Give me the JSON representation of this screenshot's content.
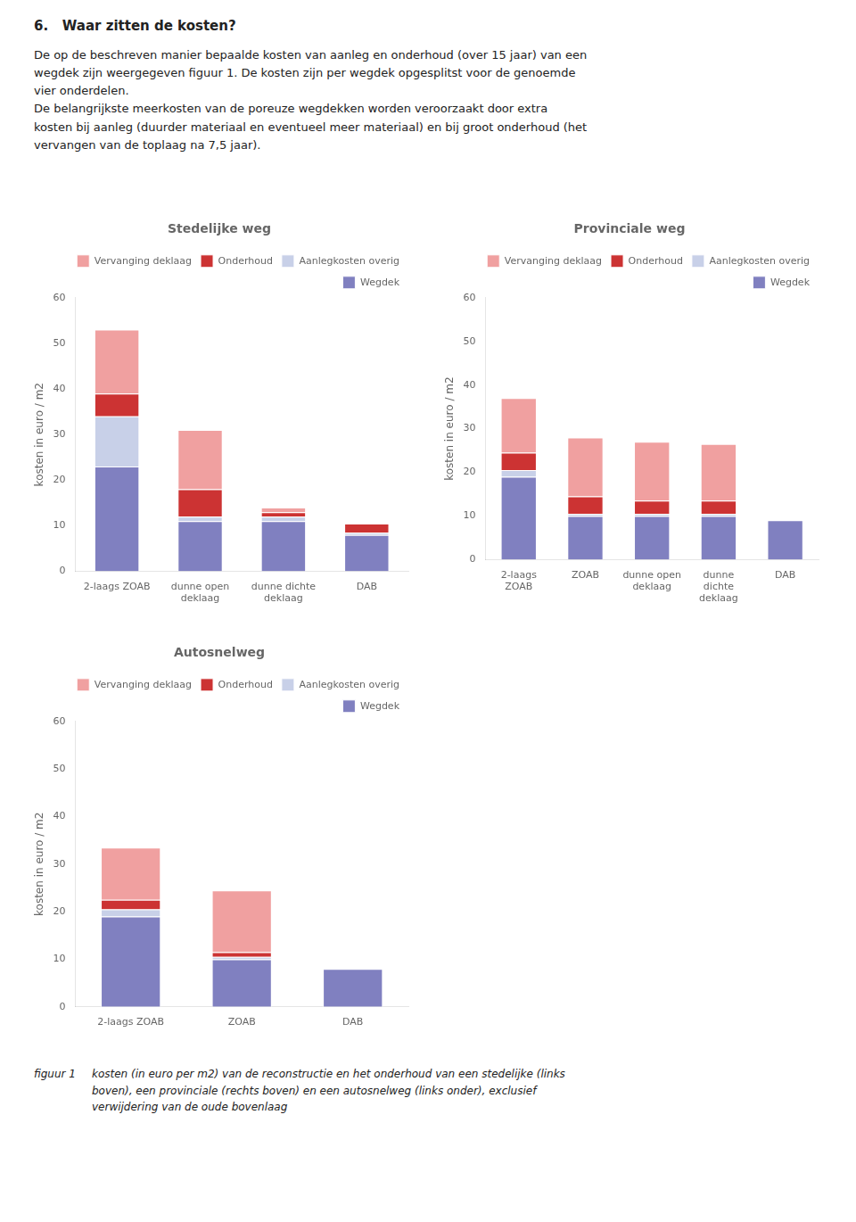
{
  "title": "6.   Waar zitten de kosten?",
  "subtitle": "De op de beschreven manier bepaalde kosten van aanleg en onderhoud (over 15 jaar) van een\nwegdek zijn weergegeven figuur 1. De kosten zijn per wegdek opgesplitst voor de genoemde\nvier onderdelen.\nDe belangrijkste meerkosten van de poreuze wegdekken worden veroorzaakt door extra\nkosten bij aanleg (duurder materiaal en eventueel meer materiaal) en bij groot onderhoud (het\nvervangen van de toplaag na 7,5 jaar).",
  "annotations": [
    "figuur 1",
    "kosten (in euro per m2) van de reconstructie en het onderhoud van een stedelijke (links\nboven), een provinciale (rechts boven) en een autosnelweg (links onder), exclusief\nverwijdering van de oude bovenlaag"
  ],
  "chart_data": [
    {
      "type": "bar",
      "title": "Stedelijke weg",
      "categories": [
        "2-laags ZOAB",
        "dunne open\ndeklaag",
        "dunne dichte\ndeklaag",
        "DAB"
      ],
      "series": [
        {
          "name": "Wegdek",
          "color": "#8080c0",
          "values": [
            23,
            11,
            11,
            8
          ]
        },
        {
          "name": "Aanlegkosten overig",
          "color": "#c8d0e8",
          "values": [
            11,
            1,
            1,
            0.5
          ]
        },
        {
          "name": "Onderhoud",
          "color": "#cc3333",
          "values": [
            5,
            6,
            1,
            2
          ]
        },
        {
          "name": "Vervanging deklaag",
          "color": "#f0a0a0",
          "values": [
            14,
            13,
            1,
            0
          ]
        }
      ],
      "ylabel": "kosten in euro / m2",
      "ylim": [
        0,
        60
      ],
      "yticks": [
        0,
        10,
        20,
        30,
        40,
        50,
        60
      ],
      "stacked": true,
      "grid": false,
      "legend": "upper right"
    },
    {
      "type": "bar",
      "title": "Provinciale weg",
      "categories": [
        "2-laags\nZOAB",
        "ZOAB",
        "dunne open\ndeklaag",
        "dunne\ndichte\ndeklaag",
        "DAB"
      ],
      "series": [
        {
          "name": "Wegdek",
          "color": "#8080c0",
          "values": [
            19,
            10,
            10,
            10,
            9
          ]
        },
        {
          "name": "Aanlegkosten overig",
          "color": "#c8d0e8",
          "values": [
            1.5,
            0.5,
            0.5,
            0.5,
            0
          ]
        },
        {
          "name": "Onderhoud",
          "color": "#cc3333",
          "values": [
            4,
            4,
            3,
            3,
            0
          ]
        },
        {
          "name": "Vervanging deklaag",
          "color": "#f0a0a0",
          "values": [
            12.5,
            13.5,
            13.5,
            13,
            0
          ]
        }
      ],
      "ylabel": "kosten in euro / m2",
      "ylim": [
        0,
        60
      ],
      "yticks": [
        0,
        10,
        20,
        30,
        40,
        50,
        60
      ],
      "stacked": true,
      "grid": false,
      "legend": "upper right"
    },
    {
      "type": "bar",
      "title": "Autosnelweg",
      "categories": [
        "2-laags ZOAB",
        "ZOAB",
        "DAB"
      ],
      "series": [
        {
          "name": "Wegdek",
          "color": "#8080c0",
          "values": [
            19,
            10,
            8
          ]
        },
        {
          "name": "Aanlegkosten overig",
          "color": "#c8d0e8",
          "values": [
            1.5,
            0.5,
            0
          ]
        },
        {
          "name": "Onderhoud",
          "color": "#cc3333",
          "values": [
            2,
            1,
            0
          ]
        },
        {
          "name": "Vervanging deklaag",
          "color": "#f0a0a0",
          "values": [
            11,
            13,
            0
          ]
        }
      ],
      "ylabel": "kosten in euro / m2",
      "ylim": [
        0,
        60
      ],
      "yticks": [
        0,
        10,
        20,
        30,
        40,
        50,
        60
      ],
      "stacked": true,
      "grid": false,
      "legend": "upper right"
    }
  ]
}
